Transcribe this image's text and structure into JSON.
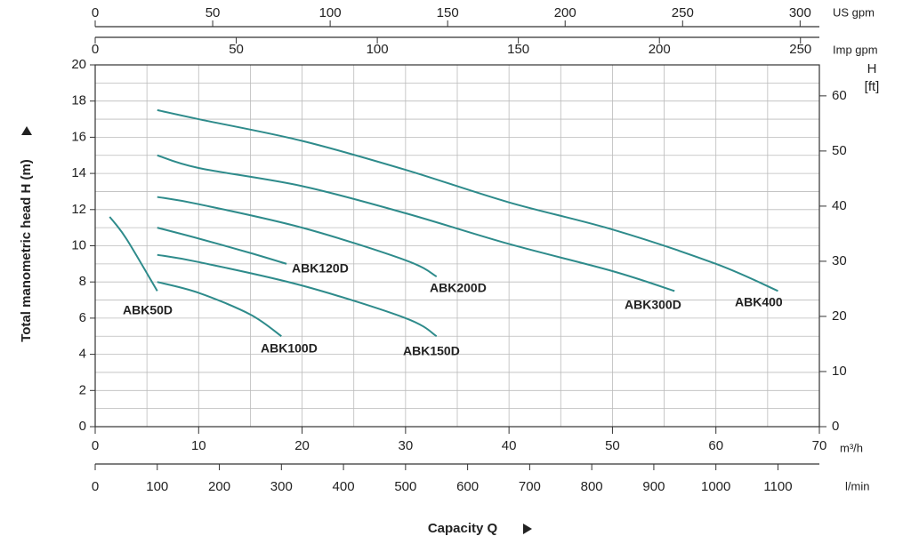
{
  "chart_data": {
    "type": "line",
    "xlabel": "Capacity Q",
    "ylabel": "Total manometric head H (m)",
    "x_unit": "m³/h",
    "xlim": [
      0,
      70
    ],
    "xticks": [
      0,
      10,
      20,
      30,
      40,
      50,
      60,
      70
    ],
    "xminor": [
      5,
      15,
      25,
      35,
      45,
      55,
      65
    ],
    "ylim": [
      0,
      20
    ],
    "yticks": [
      0,
      2,
      4,
      6,
      8,
      10,
      12,
      14,
      16,
      18,
      20
    ],
    "yminor": [
      1,
      3,
      5,
      7,
      9,
      11,
      13,
      15,
      17,
      19
    ],
    "grid": true,
    "y2_unit": [
      "H",
      "[ft]"
    ],
    "y2lim": [
      0,
      65.62
    ],
    "y2ticks": [
      0,
      10,
      20,
      30,
      40,
      50,
      60
    ],
    "extra_x_axes": [
      {
        "unit": "US gpm",
        "position": "top",
        "lim": [
          0,
          308.2
        ],
        "ticks": [
          0,
          50,
          100,
          150,
          200,
          250,
          300
        ]
      },
      {
        "unit": "Imp gpm",
        "position": "top",
        "lim": [
          0,
          256.7
        ],
        "ticks": [
          0,
          50,
          100,
          150,
          200,
          250
        ]
      },
      {
        "unit": "l/min",
        "position": "bottom",
        "lim": [
          0,
          1166.7
        ],
        "ticks": [
          0,
          100,
          200,
          300,
          400,
          500,
          600,
          700,
          800,
          900,
          1000,
          1100
        ]
      }
    ],
    "color": "#2e8b8b",
    "series": [
      {
        "name": "ABK50D",
        "x": [
          1.4,
          3,
          6
        ],
        "values": [
          11.6,
          10.4,
          7.5
        ]
      },
      {
        "name": "ABK100D",
        "x": [
          6,
          10,
          15,
          18
        ],
        "values": [
          8.0,
          7.4,
          6.2,
          5.0
        ]
      },
      {
        "name": "ABK150D",
        "x": [
          6,
          10,
          20,
          30,
          33
        ],
        "values": [
          9.5,
          9.1,
          7.8,
          6.0,
          5.0
        ]
      },
      {
        "name": "ABK120D",
        "x": [
          6,
          10,
          15,
          18.5
        ],
        "values": [
          11.0,
          10.4,
          9.6,
          9.0
        ]
      },
      {
        "name": "ABK200D",
        "x": [
          6,
          10,
          20,
          30,
          33
        ],
        "values": [
          12.7,
          12.3,
          11.0,
          9.2,
          8.3
        ]
      },
      {
        "name": "ABK300D",
        "x": [
          6,
          10,
          20,
          30,
          40,
          50,
          56
        ],
        "values": [
          15.0,
          14.3,
          13.3,
          11.8,
          10.1,
          8.6,
          7.5
        ]
      },
      {
        "name": "ABK400",
        "x": [
          6,
          10,
          20,
          30,
          40,
          50,
          60,
          66
        ],
        "values": [
          17.5,
          17.0,
          15.8,
          14.2,
          12.4,
          10.9,
          9.0,
          7.5
        ]
      }
    ]
  }
}
